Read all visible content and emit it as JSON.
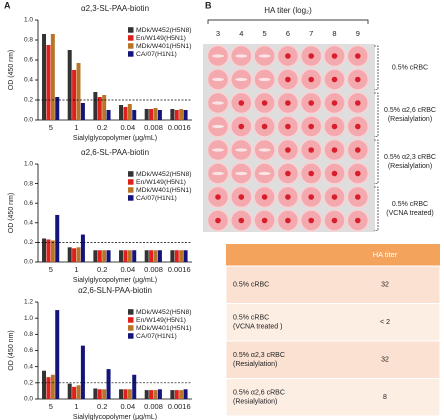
{
  "panel_labels": [
    "A",
    "B"
  ],
  "chart_data": [
    {
      "type": "bar",
      "title": "α2,3-SL-PAA-biotin",
      "x_label": "Sialylglycopolymer (μg/mL)",
      "y_label": "OD (450 nm)",
      "categories": [
        "5",
        "1",
        "0.2",
        "0.04",
        "0.008",
        "0.0016"
      ],
      "series": [
        {
          "name": "MDk/W452(H5N8)",
          "color": "#333333",
          "values": [
            0.86,
            0.7,
            0.28,
            0.15,
            0.11,
            0.11
          ]
        },
        {
          "name": "En/W149(H5N1)",
          "color": "#e0201b",
          "values": [
            0.75,
            0.5,
            0.23,
            0.13,
            0.11,
            0.1
          ]
        },
        {
          "name": "MDk/W401(H5N1)",
          "color": "#b8752a",
          "values": [
            0.86,
            0.57,
            0.25,
            0.16,
            0.12,
            0.11
          ]
        },
        {
          "name": "CA/07(H1N1)",
          "color": "#14147a",
          "values": [
            0.23,
            0.17,
            0.1,
            0.1,
            0.1,
            0.1
          ]
        }
      ],
      "ylim": [
        0,
        1.0
      ],
      "yticks": [
        {
          "value": 0,
          "label": "0.0"
        },
        0.2,
        0.4,
        0.6,
        0.8,
        {
          "value": 1.0,
          "label": "1.0"
        }
      ],
      "threshold": 0.2
    },
    {
      "type": "bar",
      "title": "α2,6-SL-PAA-biotin",
      "x_label": "Sialylglycopolymer (μg/mL)",
      "y_label": "OD (450 nm)",
      "categories": [
        "5",
        "1",
        "0.2",
        "0.04",
        "0.008",
        "0.0016"
      ],
      "series": [
        {
          "name": "MDk/W452(H5N8)",
          "color": "#333333",
          "values": [
            0.24,
            0.15,
            0.12,
            0.12,
            0.12,
            0.12
          ]
        },
        {
          "name": "En/W149(H5N1)",
          "color": "#e0201b",
          "values": [
            0.23,
            0.14,
            0.12,
            0.12,
            0.12,
            0.12
          ]
        },
        {
          "name": "MDk/W401(H5N1)",
          "color": "#b8752a",
          "values": [
            0.22,
            0.15,
            0.12,
            0.12,
            0.12,
            0.12
          ]
        },
        {
          "name": "CA/07(H1N1)",
          "color": "#14147a",
          "values": [
            0.48,
            0.28,
            0.12,
            0.12,
            0.12,
            0.12
          ]
        }
      ],
      "ylim": [
        0,
        1.0
      ],
      "yticks": [
        {
          "value": 0,
          "label": "0.0"
        },
        0.2,
        0.4,
        0.6,
        0.8,
        {
          "value": 1.0,
          "label": "1.0"
        }
      ],
      "threshold": 0.2
    },
    {
      "type": "bar",
      "title": "α2,6-SLN-PAA-biotin",
      "x_label": "Sialylglycopolymer (μg/mL)",
      "y_label": "OD (450 nm)",
      "categories": [
        "5",
        "1",
        "0.2",
        "0.04",
        "0.008",
        "0.0016"
      ],
      "series": [
        {
          "name": "MDk/W452(H5N8)",
          "color": "#333333",
          "values": [
            0.35,
            0.19,
            0.13,
            0.12,
            0.11,
            0.11
          ]
        },
        {
          "name": "En/W149(H5N1)",
          "color": "#e0201b",
          "values": [
            0.27,
            0.15,
            0.12,
            0.12,
            0.11,
            0.11
          ]
        },
        {
          "name": "MDk/W401(H5N1)",
          "color": "#b8752a",
          "values": [
            0.3,
            0.17,
            0.12,
            0.12,
            0.11,
            0.11
          ]
        },
        {
          "name": "CA/07(H1N1)",
          "color": "#14147a",
          "values": [
            1.1,
            0.66,
            0.37,
            0.3,
            0.12,
            0.12
          ]
        }
      ],
      "ylim": [
        0,
        1.2
      ],
      "yticks": [
        {
          "value": 0,
          "label": "0.0"
        },
        0.2,
        0.4,
        0.6,
        0.8,
        {
          "value": 1.0,
          "label": "1.0"
        },
        1.2
      ],
      "threshold": 0.2
    }
  ],
  "plate": {
    "title": "HA titer (log₂)",
    "columns": [
      "3",
      "4",
      "5",
      "6",
      "7",
      "8",
      "9"
    ],
    "groups": [
      [
        "0.5% cRBC"
      ],
      [
        "0.5% α2,6 cRBC",
        "(Resialylation)"
      ],
      [
        "0.5% α2,3 cRBC",
        "(Resialylation)"
      ],
      [
        "0.5% cRBC",
        "(VCNA treated)"
      ]
    ]
  },
  "table": {
    "header": "HA titer",
    "rows": [
      [
        [
          "0.5% cRBC"
        ],
        "32"
      ],
      [
        [
          "0.5% cRBC",
          "(VCNA treated )"
        ],
        "< 2"
      ],
      [
        [
          "0.5% α2,3 cRBC",
          "(Resialylation)"
        ],
        "32"
      ],
      [
        [
          "0.5% α2,6 cRBC",
          "(Resialylation)"
        ],
        "8"
      ]
    ]
  }
}
